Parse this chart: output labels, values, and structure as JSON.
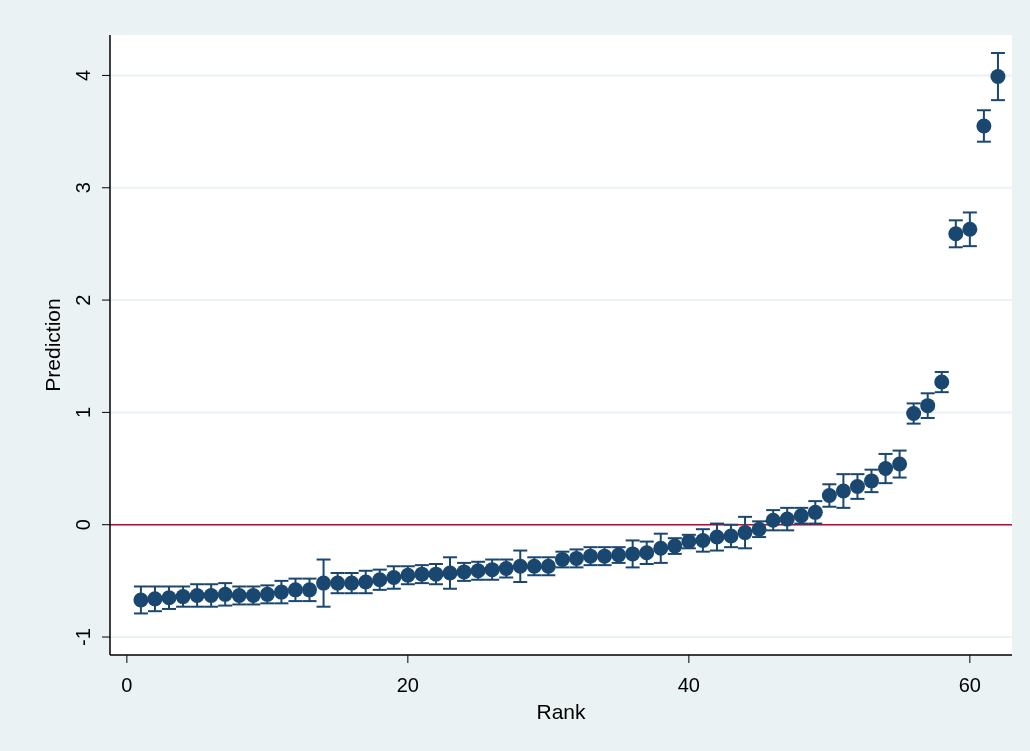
{
  "chart_data": {
    "type": "scatter",
    "xlabel": "Rank",
    "ylabel": "Prediction",
    "x": [
      1,
      2,
      3,
      4,
      5,
      6,
      7,
      8,
      9,
      10,
      11,
      12,
      13,
      14,
      15,
      16,
      17,
      18,
      19,
      20,
      21,
      22,
      23,
      24,
      25,
      26,
      27,
      28,
      29,
      30,
      31,
      32,
      33,
      34,
      35,
      36,
      37,
      38,
      39,
      40,
      41,
      42,
      43,
      44,
      45,
      46,
      47,
      48,
      49,
      50,
      51,
      52,
      53,
      54,
      55,
      56,
      57,
      58,
      59,
      60,
      61,
      62
    ],
    "series": [
      {
        "color": "#1a476f",
        "values": [
          -0.67,
          -0.66,
          -0.65,
          -0.64,
          -0.63,
          -0.63,
          -0.62,
          -0.63,
          -0.63,
          -0.62,
          -0.6,
          -0.58,
          -0.58,
          -0.52,
          -0.52,
          -0.52,
          -0.51,
          -0.49,
          -0.47,
          -0.45,
          -0.44,
          -0.44,
          -0.43,
          -0.42,
          -0.41,
          -0.4,
          -0.39,
          -0.37,
          -0.37,
          -0.37,
          -0.31,
          -0.3,
          -0.28,
          -0.28,
          -0.27,
          -0.26,
          -0.25,
          -0.21,
          -0.19,
          -0.15,
          -0.14,
          -0.11,
          -0.1,
          -0.07,
          -0.04,
          0.04,
          0.05,
          0.08,
          0.11,
          0.26,
          0.3,
          0.34,
          0.39,
          0.5,
          0.54,
          0.99,
          1.06,
          1.27,
          2.59,
          2.63,
          3.55,
          3.99
        ],
        "errors": [
          0.12,
          0.11,
          0.1,
          0.09,
          0.1,
          0.1,
          0.1,
          0.08,
          0.08,
          0.08,
          0.1,
          0.1,
          0.1,
          0.21,
          0.09,
          0.09,
          0.1,
          0.09,
          0.1,
          0.08,
          0.08,
          0.09,
          0.14,
          0.08,
          0.08,
          0.09,
          0.08,
          0.14,
          0.08,
          0.08,
          0.07,
          0.08,
          0.08,
          0.08,
          0.07,
          0.12,
          0.1,
          0.13,
          0.07,
          0.06,
          0.1,
          0.12,
          0.1,
          0.14,
          0.07,
          0.09,
          0.1,
          0.07,
          0.1,
          0.1,
          0.15,
          0.11,
          0.1,
          0.13,
          0.12,
          0.09,
          0.11,
          0.09,
          0.12,
          0.15,
          0.14,
          0.21
        ]
      }
    ],
    "xlim": [
      -1.2,
      63
    ],
    "ylim": [
      -1.16,
      4.36
    ],
    "xticks": [
      0,
      20,
      40,
      60
    ],
    "yticks": [
      -1,
      0,
      1,
      2,
      3,
      4
    ],
    "grid": "y",
    "marker": "circle",
    "ref_lines": [
      {
        "axis": "y",
        "value": 0,
        "color": "#c10534"
      }
    ]
  }
}
